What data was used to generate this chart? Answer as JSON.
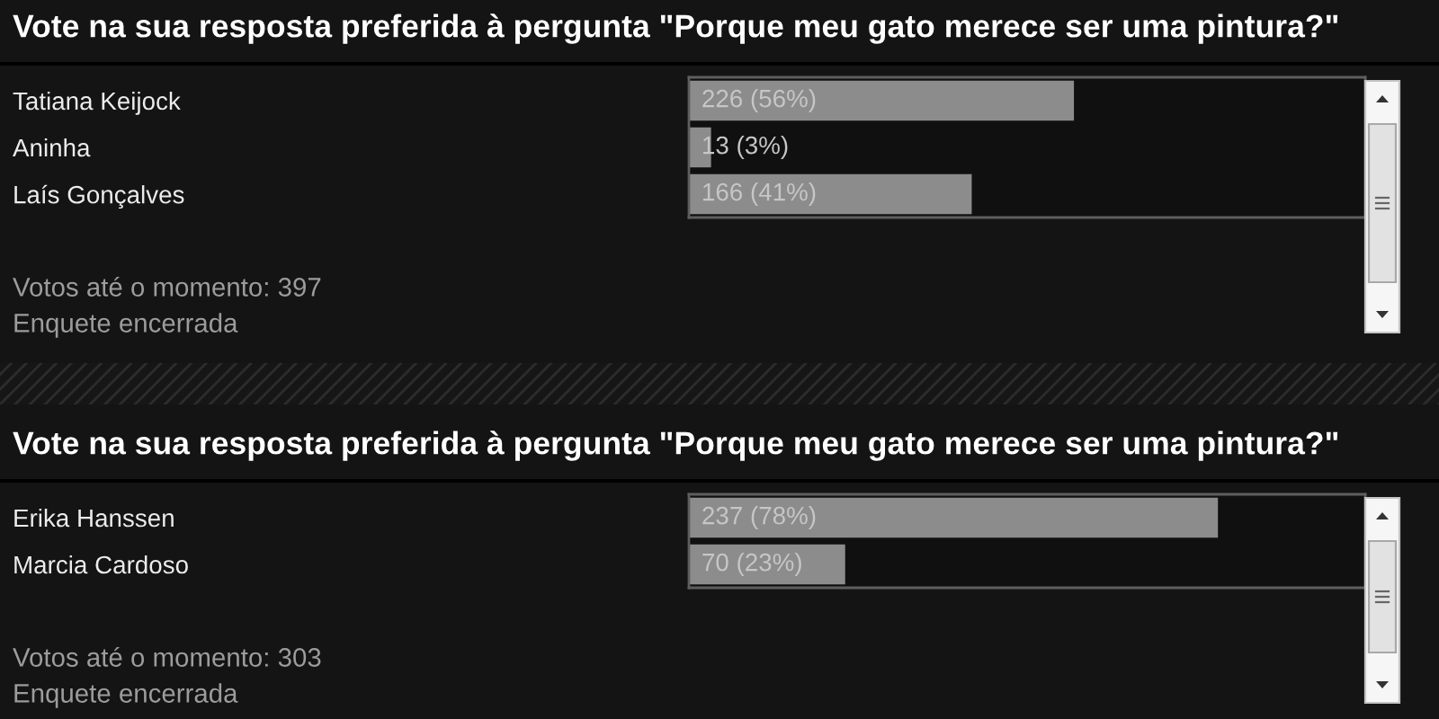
{
  "chart_data": [
    {
      "type": "bar",
      "orientation": "horizontal",
      "title": "Vote na sua resposta preferida à pergunta \"Porque meu gato merece ser uma pintura?\"",
      "categories": [
        "Tatiana Keijock",
        "Aninha",
        "Laís Gonçalves"
      ],
      "values": [
        226,
        13,
        166
      ],
      "value_labels": [
        "226 (56%)",
        "13 (3%)",
        "166 (41%)"
      ],
      "color": "#8c8c8c",
      "xlim": [
        0,
        397
      ],
      "tick_labels": "y",
      "annotations": [
        "Votos até o momento: 397",
        "Enquete encerrada"
      ]
    },
    {
      "type": "bar",
      "orientation": "horizontal",
      "title": "Vote na sua resposta preferida à pergunta \"Porque meu gato merece ser uma pintura?\"",
      "categories": [
        "Erika Hanssen",
        "Marcia Cardoso"
      ],
      "values": [
        237,
        70
      ],
      "value_labels": [
        "237 (78%)",
        "70 (23%)"
      ],
      "color": "#8c8c8c",
      "xlim": [
        0,
        303
      ],
      "tick_labels": "y",
      "annotations": [
        "Votos até o momento: 303",
        "Enquete encerrada"
      ]
    }
  ]
}
